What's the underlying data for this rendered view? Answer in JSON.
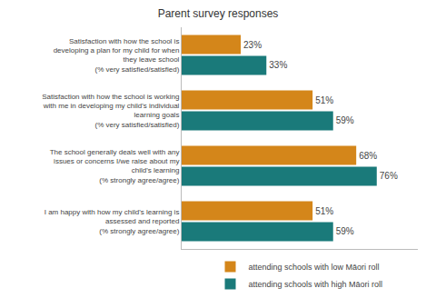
{
  "chart_data": {
    "type": "bar",
    "orientation": "horizontal",
    "title": "Parent survey responses",
    "categories": [
      "Satisfaction with how the school is\ndeveloping a plan for my child for when\nthey leave school\n(% very satisfied/satisfied)",
      "Satisfaction with how the school is working\nwith me in developing my child's individual\nlearning goals\n(% very satisfied/satisfied)",
      "The school generally deals well with any\nissues or concerns I/we raise about my\nchild's learning\n(% strongly agree/agree)",
      "I am happy with how my child's learning is\nassessed and reported\n(% strongly agree/agree)"
    ],
    "series": [
      {
        "name": "attending schools with low Māori roll",
        "color": "#D4861A",
        "values": [
          23,
          51,
          68,
          51
        ],
        "value_labels": [
          "23%",
          "51%",
          "68%",
          "51%"
        ]
      },
      {
        "name": "attending schools with high Māori roll",
        "color": "#1A7A7A",
        "values": [
          33,
          59,
          76,
          59
        ],
        "value_labels": [
          "33%",
          "59%",
          "76%",
          "59%"
        ]
      }
    ],
    "xlim": [
      0,
      92
    ],
    "xticks": [],
    "tick_labels": "y",
    "data_labels": true,
    "legend": "bottom",
    "grid": false
  }
}
